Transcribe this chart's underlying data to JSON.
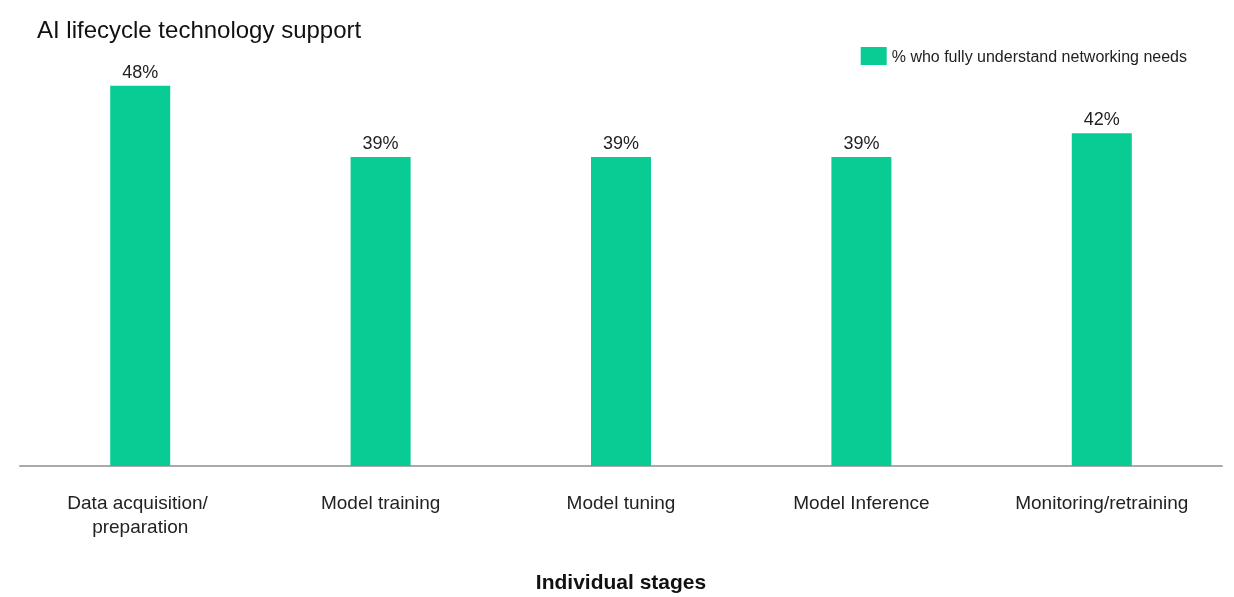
{
  "chart_data": {
    "type": "bar",
    "title": "AI lifecycle technology support",
    "xlabel": "Individual stages",
    "categories": [
      "Data acquisition/ preparation",
      "Model training",
      "Model tuning",
      "Model Inference",
      "Monitoring/retraining"
    ],
    "series": [
      {
        "name": "% who fully understand networking needs",
        "color": "#08cc94",
        "values": [
          48,
          39,
          39,
          39,
          42
        ],
        "value_labels": [
          "48%",
          "39%",
          "39%",
          "39%",
          "42%"
        ]
      }
    ],
    "legend": "top right"
  }
}
